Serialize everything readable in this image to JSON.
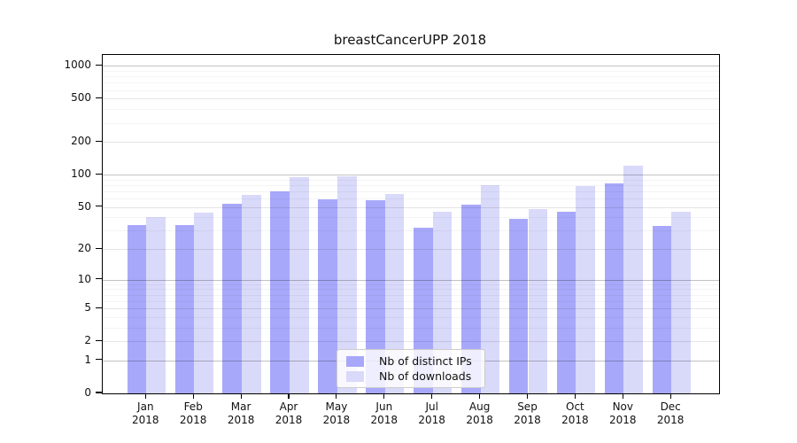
{
  "title": "breastCancerUPP 2018",
  "colors": {
    "series_distinct_ips": "#a8a8fa",
    "series_downloads": "#d9d9fa",
    "axis": "#000000",
    "legend_border": "#cccccc"
  },
  "chart_data": {
    "type": "bar",
    "title": "breastCancerUPP 2018",
    "categories": [
      "Jan",
      "Feb",
      "Mar",
      "Apr",
      "May",
      "Jun",
      "Jul",
      "Aug",
      "Sep",
      "Oct",
      "Nov",
      "Dec"
    ],
    "year_label": "2018",
    "series": [
      {
        "name": "Nb of distinct IPs",
        "color": "#a8a8fa",
        "values": [
          34,
          34,
          54,
          70,
          59,
          58,
          32,
          53,
          39,
          45,
          83,
          33
        ]
      },
      {
        "name": "Nb of downloads",
        "color": "#d9d9fa",
        "values": [
          40,
          44,
          65,
          95,
          97,
          66,
          45,
          80,
          48,
          78,
          120,
          45
        ]
      }
    ],
    "yticks": [
      0,
      1,
      2,
      5,
      10,
      20,
      50,
      100,
      200,
      500,
      1000
    ],
    "ytick_labels": [
      "0",
      "1",
      "2",
      "5",
      "10",
      "20",
      "50",
      "100",
      "200",
      "500",
      "1000"
    ],
    "scale": "symlog",
    "ylim": [
      0,
      1260
    ],
    "grid": true,
    "legend_position": "lower center inside plot",
    "legend_labels": [
      "Nb of distinct IPs",
      "Nb of downloads"
    ]
  }
}
